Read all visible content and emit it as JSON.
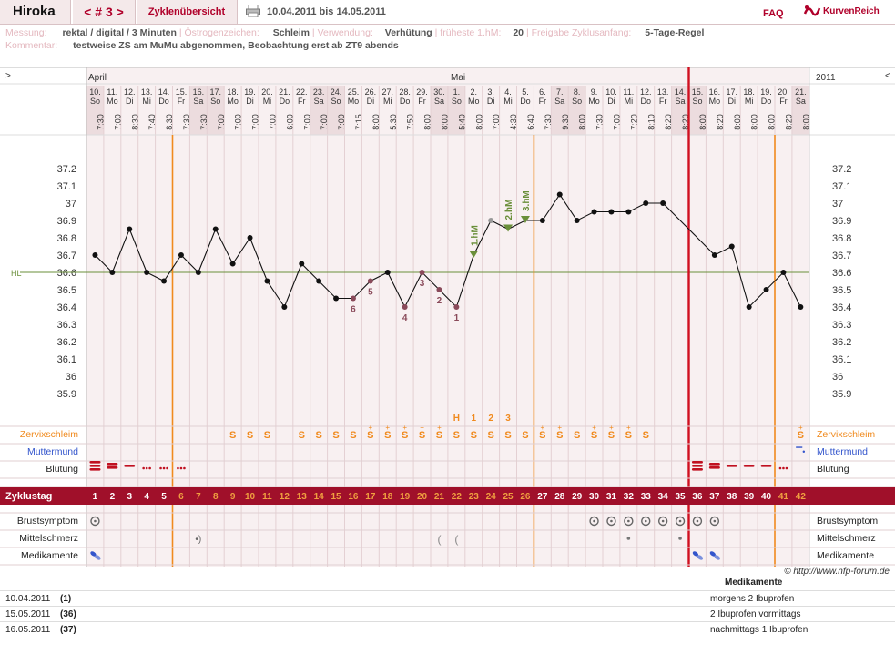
{
  "app": {
    "name": "Hiroka",
    "cycle_nav": "< # 3 >",
    "prev": "<",
    "cycle_label": "# 3",
    "next": ">",
    "overview_tab": "Zyklenübersicht",
    "date_range": "10.04.2011 bis 14.05.2011",
    "faq": "FAQ",
    "logo": "KurvenReich"
  },
  "info": {
    "messung_label": "Messung:",
    "messung": "rektal / digital / 3 Minuten",
    "oestrogen_label": "Östrogenzeichen:",
    "oestrogen": "Schleim",
    "verwendung_label": "Verwendung:",
    "verwendung": "Verhütung",
    "hm_label": "früheste 1.hM:",
    "hm": "20",
    "freigabe_label": "Freigabe Zyklusanfang:",
    "freigabe": "5-Tage-Regel",
    "kommentar_label": "Kommentar:",
    "kommentar": "testweise ZS am MuMu abgenommen, Beobachtung erst ab ZT9 abends"
  },
  "chart_header": {
    "left_arrow": ">",
    "right_arrow": "<",
    "month1": "April",
    "month2": "Mai",
    "year": "2011",
    "hl_label": "HL"
  },
  "days": [
    {
      "d": "10.",
      "w": "So",
      "t": "7:30"
    },
    {
      "d": "11.",
      "w": "Mo",
      "t": "7:00"
    },
    {
      "d": "12.",
      "w": "Di",
      "t": "8:30"
    },
    {
      "d": "13.",
      "w": "Mi",
      "t": "7:40"
    },
    {
      "d": "14.",
      "w": "Do",
      "t": "8:30"
    },
    {
      "d": "15.",
      "w": "Fr",
      "t": "7:30"
    },
    {
      "d": "16.",
      "w": "Sa",
      "t": "7:30"
    },
    {
      "d": "17.",
      "w": "So",
      "t": "7:00"
    },
    {
      "d": "18.",
      "w": "Mo",
      "t": "7:00"
    },
    {
      "d": "19.",
      "w": "Di",
      "t": "7:00"
    },
    {
      "d": "20.",
      "w": "Mi",
      "t": "7:00"
    },
    {
      "d": "21.",
      "w": "Do",
      "t": "6:00"
    },
    {
      "d": "22.",
      "w": "Fr",
      "t": "7:00"
    },
    {
      "d": "23.",
      "w": "Sa",
      "t": "7:00"
    },
    {
      "d": "24.",
      "w": "So",
      "t": "7:00"
    },
    {
      "d": "25.",
      "w": "Mo",
      "t": "7:15"
    },
    {
      "d": "26.",
      "w": "Di",
      "t": "8:00"
    },
    {
      "d": "27.",
      "w": "Mi",
      "t": "5:30"
    },
    {
      "d": "28.",
      "w": "Do",
      "t": "7:50"
    },
    {
      "d": "29.",
      "w": "Fr",
      "t": "8:00"
    },
    {
      "d": "30.",
      "w": "Sa",
      "t": "8:00"
    },
    {
      "d": "1.",
      "w": "So",
      "t": "5:40"
    },
    {
      "d": "2.",
      "w": "Mo",
      "t": "8:00"
    },
    {
      "d": "3.",
      "w": "Di",
      "t": "7:00"
    },
    {
      "d": "4.",
      "w": "Mi",
      "t": "4:30"
    },
    {
      "d": "5.",
      "w": "Do",
      "t": "6:40"
    },
    {
      "d": "6.",
      "w": "Fr",
      "t": "7:30"
    },
    {
      "d": "7.",
      "w": "Sa",
      "t": "9:30"
    },
    {
      "d": "8.",
      "w": "So",
      "t": "8:00"
    },
    {
      "d": "9.",
      "w": "Mo",
      "t": "7:30"
    },
    {
      "d": "10.",
      "w": "Di",
      "t": "7:00"
    },
    {
      "d": "11.",
      "w": "Mi",
      "t": "7:20"
    },
    {
      "d": "12.",
      "w": "Do",
      "t": "8:10"
    },
    {
      "d": "13.",
      "w": "Fr",
      "t": "8:20"
    },
    {
      "d": "14.",
      "w": "Sa",
      "t": "8:20"
    },
    {
      "d": "15.",
      "w": "So",
      "t": "8:00"
    },
    {
      "d": "16.",
      "w": "Mo",
      "t": "8:20"
    },
    {
      "d": "17.",
      "w": "Di",
      "t": "8:00"
    },
    {
      "d": "18.",
      "w": "Mi",
      "t": "8:00"
    },
    {
      "d": "19.",
      "w": "Do",
      "t": "8:00"
    },
    {
      "d": "20.",
      "w": "Fr",
      "t": "8:20"
    },
    {
      "d": "21.",
      "w": "Sa",
      "t": "8:00"
    }
  ],
  "weekend_days": [
    0,
    6,
    7,
    13,
    14,
    20,
    21,
    27,
    28,
    34,
    35,
    41
  ],
  "chart_data": {
    "type": "line",
    "ylim": [
      35.8,
      37.3
    ],
    "yticks": [
      "37.2",
      "37.1",
      "37",
      "36.9",
      "36.8",
      "36.7",
      "36.6",
      "36.5",
      "36.4",
      "36.3",
      "36.2",
      "36.1",
      "36",
      "35.9"
    ],
    "hl": 36.6,
    "x": [
      "10.",
      "11.",
      "12.",
      "13.",
      "14.",
      "15.",
      "16.",
      "17.",
      "18.",
      "19.",
      "20.",
      "21.",
      "22.",
      "23.",
      "24.",
      "25.",
      "26.",
      "27.",
      "28.",
      "29.",
      "30.",
      "1.",
      "2.",
      "3.",
      "4.",
      "5.",
      "6.",
      "7.",
      "8.",
      "9.",
      "10.",
      "11.",
      "12.",
      "13.",
      "14.",
      "15.",
      "16.",
      "17.",
      "18.",
      "19.",
      "20.",
      "21."
    ],
    "temps": [
      36.7,
      36.6,
      36.85,
      36.6,
      36.55,
      36.7,
      36.6,
      36.85,
      36.65,
      36.8,
      36.55,
      36.4,
      36.65,
      36.55,
      36.45,
      36.45,
      36.55,
      36.6,
      36.4,
      36.6,
      36.5,
      36.4,
      36.7,
      36.9,
      36.85,
      36.9,
      36.9,
      37.05,
      36.9,
      36.95,
      36.95,
      36.95,
      37.0,
      37.0,
      null,
      null,
      36.7,
      36.75,
      36.4,
      36.5,
      36.6,
      36.4
    ],
    "gap_segments": [
      [
        33,
        36
      ]
    ],
    "low_labels": [
      {
        "i": 15,
        "label": "6",
        "pos": "below"
      },
      {
        "i": 16,
        "label": "5",
        "pos": "below"
      },
      {
        "i": 18,
        "label": "4",
        "pos": "below"
      },
      {
        "i": 19,
        "label": "3",
        "pos": "below"
      },
      {
        "i": 20,
        "label": "2",
        "pos": "below"
      },
      {
        "i": 21,
        "label": "1",
        "pos": "below"
      }
    ],
    "high_labels": [
      {
        "i": 22,
        "label": "1.hM"
      },
      {
        "i": 24,
        "label": "2.hM"
      },
      {
        "i": 25,
        "label": "3.hM"
      }
    ]
  },
  "peak_row": {
    "labels": [
      {
        "i": 21,
        "t": "H"
      },
      {
        "i": 22,
        "t": "1"
      },
      {
        "i": 23,
        "t": "2"
      },
      {
        "i": 24,
        "t": "3"
      }
    ]
  },
  "rows": {
    "zervix_label": "Zervixschleim",
    "muttermund_label": "Muttermund",
    "blutung_label": "Blutung",
    "zyklustag_label": "Zyklustag",
    "brust_label": "Brustsymptom",
    "mittel_label": "Mittelschmerz",
    "medi_label": "Medikamente"
  },
  "zervix": {
    "8": "S",
    "9": "S",
    "10": "S",
    "12": "S",
    "13": "S",
    "14": "S",
    "15": "S",
    "16": "S+",
    "17": "S+",
    "18": "S+",
    "19": "S+",
    "20": "S+",
    "21": "S",
    "22": "S",
    "23": "S",
    "24": "S",
    "25": "S",
    "26": "S+",
    "27": "S+",
    "28": "S",
    "29": "S+",
    "30": "S+",
    "31": "S+",
    "32": "S",
    "41": "S+"
  },
  "cycle_days": [
    "1",
    "2",
    "3",
    "4",
    "5",
    "6",
    "7",
    "8",
    "9",
    "10",
    "11",
    "12",
    "13",
    "14",
    "15",
    "16",
    "17",
    "18",
    "19",
    "20",
    "21",
    "22",
    "23",
    "24",
    "25",
    "26",
    "27",
    "28",
    "29",
    "30",
    "31",
    "32",
    "33",
    "34",
    "35",
    "36",
    "37",
    "38",
    "39",
    "40",
    "41",
    "42"
  ],
  "footer": {
    "copyright": "© http://www.nfp-forum.de",
    "med_head": "Medikamente",
    "meds": [
      {
        "date": "10.04.2011",
        "cd": "(1)",
        "text": "morgens 2 Ibuprofen"
      },
      {
        "date": "15.05.2011",
        "cd": "(36)",
        "text": "2 Ibuprofen vormittags"
      },
      {
        "date": "16.05.2011",
        "cd": "(37)",
        "text": "nachmittags 1 Ibuprofen"
      }
    ]
  },
  "colors": {
    "accent": "#b0002a",
    "orange": "#f08a1e",
    "green": "#6a8f3a",
    "dark_red": "#a0102a",
    "blue": "#3355cc"
  }
}
